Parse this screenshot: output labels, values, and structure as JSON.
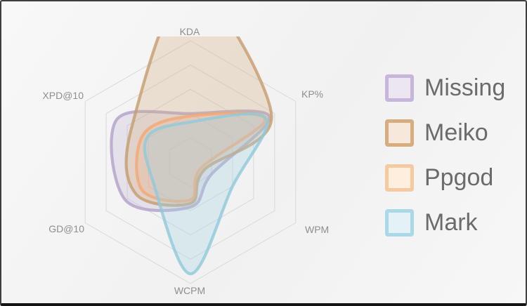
{
  "chart_data": {
    "type": "radar",
    "title": "",
    "categories": [
      "KDA",
      "KP%",
      "WPM",
      "WCPM",
      "GD@10",
      "XPD@10"
    ],
    "axis_max": 100,
    "rings": 5,
    "grid_on": true,
    "grid_color": "#d9d9d9",
    "axis_label_color": "#8e8e8e",
    "legend_position": "right",
    "series": [
      {
        "name": "Missing",
        "line_color": "#b2a1c7",
        "fill_color": "#b2a1c7",
        "fill_opacity": 0.22,
        "swatch_border": "#c6b6da",
        "swatch_fill": "#ece6f3",
        "values": [
          40,
          75,
          20,
          37,
          62,
          70
        ]
      },
      {
        "name": "Meiko",
        "line_color": "#c69c6d",
        "fill_color": "#d5ab7d",
        "fill_opacity": 0.3,
        "swatch_border": "#d7ac7f",
        "swatch_fill": "#f6e9dc",
        "values": [
          145,
          77,
          13,
          34,
          52,
          56
        ]
      },
      {
        "name": "Ppgod",
        "line_color": "#f2a873",
        "fill_color": "#f5b183",
        "fill_opacity": 0.25,
        "swatch_border": "#f7c9a0",
        "swatch_fill": "#fdeede",
        "values": [
          38,
          71,
          10,
          31,
          46,
          45
        ]
      },
      {
        "name": "Mark",
        "line_color": "#8fc9da",
        "fill_color": "#a3d5e2",
        "fill_opacity": 0.32,
        "swatch_border": "#a9d8e7",
        "swatch_fill": "#e4f2f8",
        "values": [
          33,
          72,
          40,
          92,
          35,
          41
        ]
      }
    ]
  }
}
